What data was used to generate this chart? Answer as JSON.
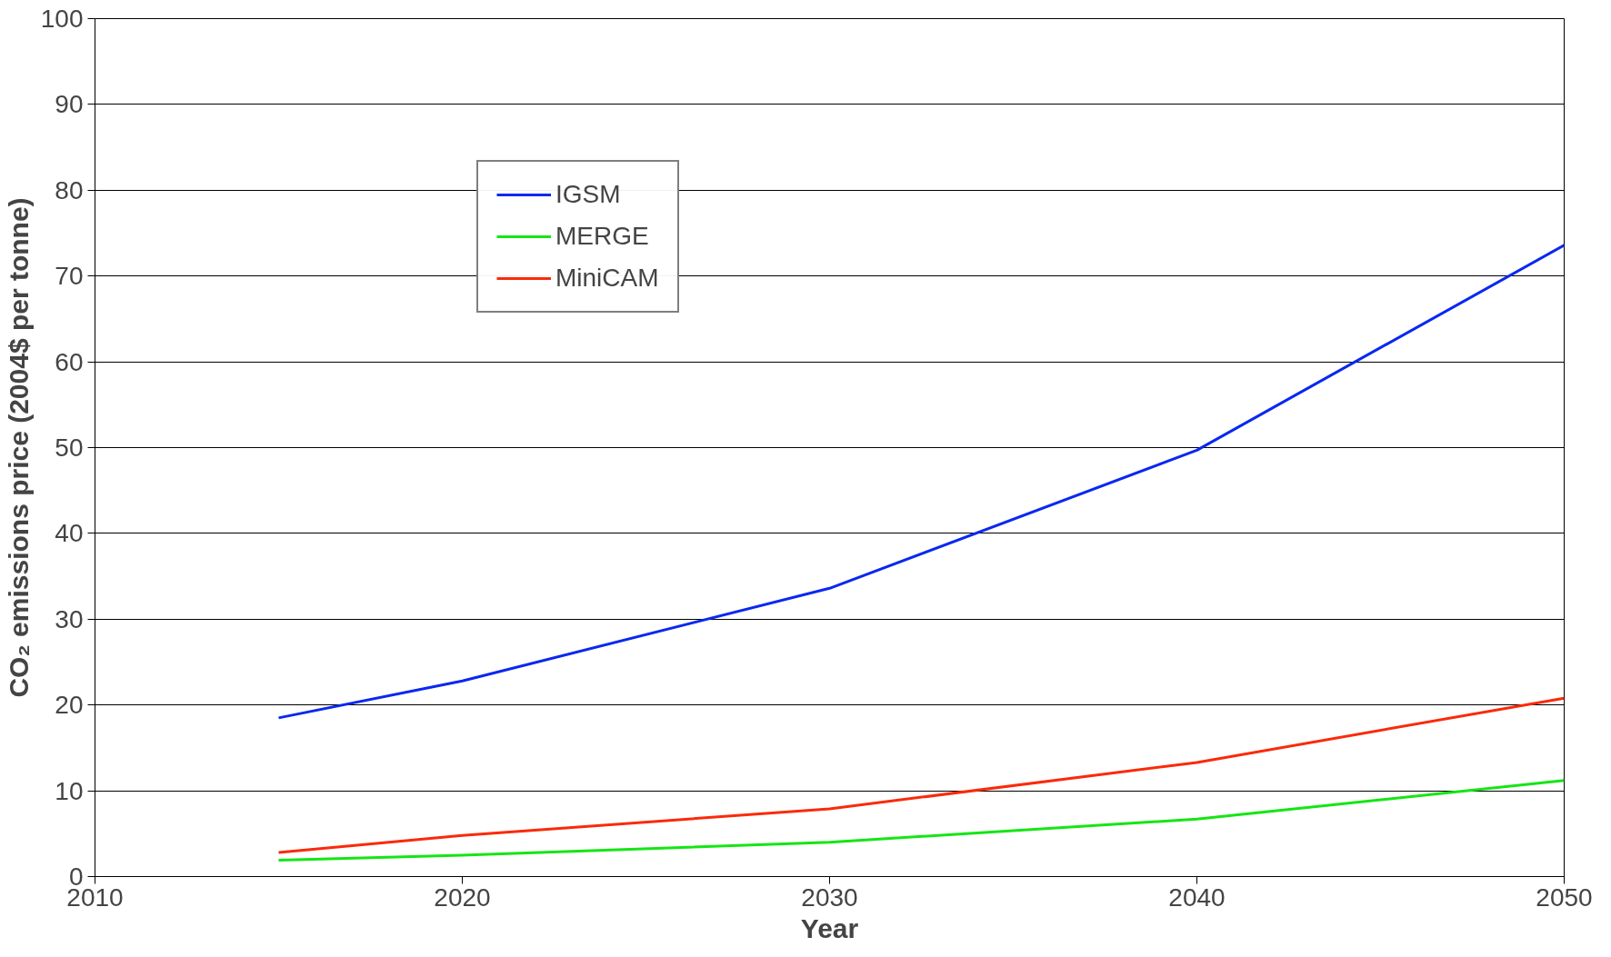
{
  "chart_data": {
    "type": "line",
    "xlabel": "Year",
    "ylabel": "CO₂ emissions price (2004$ per tonne)",
    "x": [
      2015,
      2020,
      2030,
      2040,
      2050
    ],
    "series": [
      {
        "name": "IGSM",
        "color": "#0a28f0",
        "values": [
          18.5,
          22.8,
          33.6,
          49.7,
          73.6
        ]
      },
      {
        "name": "MERGE",
        "color": "#14e614",
        "values": [
          1.9,
          2.5,
          4.0,
          6.7,
          11.2
        ]
      },
      {
        "name": "MiniCAM",
        "color": "#fa2a0a",
        "values": [
          2.8,
          4.8,
          7.9,
          13.3,
          20.8
        ]
      }
    ],
    "xlim": [
      2010,
      2050
    ],
    "xticks": [
      2010,
      2020,
      2030,
      2040,
      2050
    ],
    "ylim": [
      0,
      100
    ],
    "yticks": [
      0,
      10,
      20,
      30,
      40,
      50,
      60,
      70,
      80,
      90,
      100
    ],
    "grid": "y",
    "legend": "top left",
    "marker": "none",
    "line_style": "solid"
  }
}
